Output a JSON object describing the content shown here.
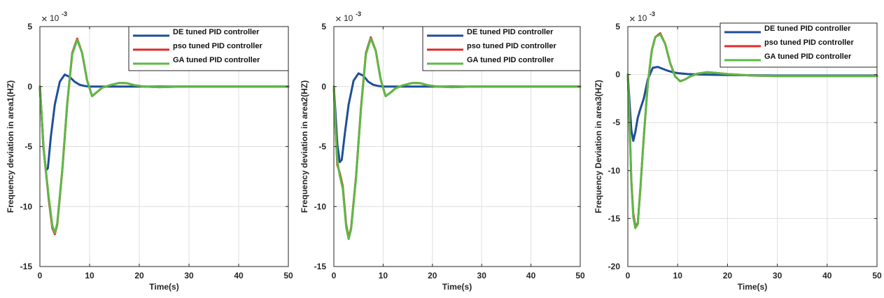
{
  "chart_data": [
    {
      "type": "line",
      "title": "",
      "xlabel": "Time(s)",
      "ylabel": "Frequency deviation in area1(HZ)",
      "exponent_label": "10",
      "exponent_power": "-3",
      "xlim": [
        0,
        50
      ],
      "ylim": [
        -15,
        5
      ],
      "xticks": [
        0,
        10,
        20,
        30,
        40,
        50
      ],
      "yticks": [
        -15,
        -10,
        -5,
        0,
        5
      ],
      "grid": true,
      "legend_position": "top-right",
      "series": [
        {
          "name": "DE tuned PID controller",
          "color": "#1f4e9c",
          "x": [
            0,
            0.3,
            0.7,
            1.2,
            1.6,
            2.2,
            3,
            4,
            5,
            6,
            7,
            8,
            9,
            10,
            12,
            15,
            20,
            30,
            50
          ],
          "y": [
            0,
            -2,
            -5,
            -7,
            -6.8,
            -4.2,
            -1.5,
            0.4,
            1.0,
            0.8,
            0.4,
            0.15,
            0.05,
            0,
            0,
            0,
            0,
            0,
            0
          ]
        },
        {
          "name": "pso tuned PID controller",
          "color": "#e02b2b",
          "x": [
            0,
            0.3,
            0.7,
            1.2,
            1.8,
            2.5,
            3,
            3.5,
            4.5,
            5.5,
            6.5,
            7.5,
            8.5,
            9.5,
            10.5,
            11.5,
            12.5,
            14,
            16,
            17.5,
            19,
            21,
            24,
            28,
            35,
            50
          ],
          "y": [
            0,
            -2,
            -5,
            -7,
            -9.5,
            -11.8,
            -12.3,
            -11.5,
            -7,
            -1.5,
            2.8,
            4.0,
            2.8,
            0.5,
            -0.8,
            -0.45,
            -0.1,
            0.1,
            0.3,
            0.28,
            0.12,
            0,
            -0.05,
            0,
            0,
            0
          ]
        },
        {
          "name": "GA tuned PID controller",
          "color": "#5cb946",
          "x": [
            0,
            0.3,
            0.7,
            1.2,
            1.8,
            2.5,
            3,
            3.5,
            4.5,
            5.5,
            6.5,
            7.5,
            8.5,
            9.5,
            10.5,
            11.5,
            12.5,
            14,
            16,
            17.5,
            19,
            21,
            24,
            28,
            35,
            50
          ],
          "y": [
            0,
            -2,
            -5,
            -7,
            -9.3,
            -11.6,
            -12.2,
            -11.4,
            -6.9,
            -1.4,
            2.7,
            3.9,
            2.8,
            0.5,
            -0.8,
            -0.45,
            -0.1,
            0.1,
            0.3,
            0.28,
            0.12,
            0,
            -0.05,
            0,
            0,
            0
          ]
        }
      ]
    },
    {
      "type": "line",
      "title": "",
      "xlabel": "Time(s)",
      "ylabel": "Frequency deviation in area2(HZ)",
      "exponent_label": "10",
      "exponent_power": "-3",
      "xlim": [
        0,
        50
      ],
      "ylim": [
        -15,
        5
      ],
      "xticks": [
        0,
        10,
        20,
        30,
        40,
        50
      ],
      "yticks": [
        -15,
        -10,
        -5,
        0,
        5
      ],
      "grid": true,
      "legend_position": "top-right",
      "series": [
        {
          "name": "DE tuned PID controller",
          "color": "#1f4e9c",
          "x": [
            0,
            0.3,
            0.7,
            1.2,
            1.6,
            2.2,
            3,
            4,
            5,
            6,
            7,
            8,
            9,
            10,
            12,
            15,
            20,
            30,
            50
          ],
          "y": [
            0,
            -2,
            -4.8,
            -6.3,
            -6.1,
            -4.0,
            -1.5,
            0.5,
            1.1,
            0.9,
            0.4,
            0.15,
            0.05,
            0,
            0,
            0,
            0,
            0,
            0
          ]
        },
        {
          "name": "pso tuned PID controller",
          "color": "#e02b2b",
          "x": [
            0,
            0.3,
            0.7,
            1.2,
            1.8,
            2.5,
            3,
            3.5,
            4.5,
            5.5,
            6.5,
            7.5,
            8.5,
            9.5,
            10.5,
            11.5,
            12.5,
            14,
            16,
            17.5,
            19,
            21,
            24,
            28,
            35,
            50
          ],
          "y": [
            0,
            -3,
            -6.5,
            -7.2,
            -8.3,
            -11.5,
            -12.6,
            -11.8,
            -7.5,
            -1.8,
            2.8,
            4.1,
            3.0,
            0.6,
            -0.8,
            -0.5,
            -0.15,
            0.1,
            0.3,
            0.28,
            0.12,
            0,
            -0.05,
            0,
            0,
            0
          ]
        },
        {
          "name": "GA tuned PID controller",
          "color": "#5cb946",
          "x": [
            0,
            0.3,
            0.7,
            1.2,
            1.8,
            2.5,
            3,
            3.5,
            4.5,
            5.5,
            6.5,
            7.5,
            8.5,
            9.5,
            10.5,
            11.5,
            12.5,
            14,
            16,
            17.5,
            19,
            21,
            24,
            28,
            35,
            50
          ],
          "y": [
            0,
            -3.2,
            -6.2,
            -7.4,
            -8.5,
            -11.7,
            -12.7,
            -11.9,
            -7.6,
            -1.9,
            2.7,
            4.0,
            3.0,
            0.6,
            -0.8,
            -0.5,
            -0.15,
            0.1,
            0.3,
            0.28,
            0.12,
            0,
            -0.05,
            0,
            0,
            0
          ]
        }
      ]
    },
    {
      "type": "line",
      "title": "",
      "xlabel": "Time(s)",
      "ylabel": "Frequency Deviation in area3(HZ)",
      "exponent_label": "10",
      "exponent_power": "-3",
      "xlim": [
        0,
        50
      ],
      "ylim": [
        -20,
        5
      ],
      "xticks": [
        0,
        10,
        20,
        30,
        40,
        50
      ],
      "yticks": [
        -20,
        -15,
        -10,
        -5,
        0,
        5
      ],
      "grid": true,
      "legend_position": "top-right",
      "series": [
        {
          "name": "DE tuned PID controller",
          "color": "#1f4e9c",
          "x": [
            0,
            0.3,
            0.7,
            1.1,
            1.5,
            2,
            2.5,
            3.2,
            4,
            5,
            6,
            7,
            8,
            9,
            10,
            12,
            15,
            20,
            30,
            50
          ],
          "y": [
            0,
            -2.5,
            -5.8,
            -6.9,
            -6.0,
            -4.5,
            -3.6,
            -2.5,
            -0.5,
            0.7,
            0.8,
            0.6,
            0.4,
            0.25,
            0.15,
            0.05,
            0,
            -0.05,
            -0.1,
            -0.1
          ]
        },
        {
          "name": "pso tuned PID controller",
          "color": "#e02b2b",
          "x": [
            0,
            0.3,
            0.7,
            1.1,
            1.5,
            2,
            2.5,
            3.2,
            4,
            4.8,
            5.5,
            6.5,
            7.5,
            8.5,
            9.5,
            10.5,
            11.5,
            12.5,
            14,
            16,
            18,
            20,
            25,
            30,
            40,
            50
          ],
          "y": [
            0,
            -4,
            -11,
            -14.5,
            -15.8,
            -15.5,
            -12,
            -6.5,
            -1.0,
            2.5,
            3.9,
            4.3,
            3.2,
            1.2,
            -0.2,
            -0.7,
            -0.5,
            -0.2,
            0.1,
            0.25,
            0.15,
            0.05,
            -0.1,
            -0.15,
            -0.15,
            -0.15
          ]
        },
        {
          "name": "GA tuned PID controller",
          "color": "#5cb946",
          "x": [
            0,
            0.3,
            0.7,
            1.1,
            1.5,
            2,
            2.5,
            3.2,
            4,
            4.8,
            5.5,
            6.5,
            7.5,
            8.5,
            9.5,
            10.5,
            11.5,
            12.5,
            14,
            16,
            18,
            20,
            25,
            30,
            40,
            50
          ],
          "y": [
            0,
            -4.2,
            -11.2,
            -14.8,
            -16,
            -15.6,
            -12,
            -6.5,
            -1.0,
            2.5,
            3.9,
            4.2,
            3.2,
            1.2,
            -0.2,
            -0.7,
            -0.5,
            -0.2,
            0.1,
            0.25,
            0.15,
            0.05,
            -0.1,
            -0.15,
            -0.15,
            -0.15
          ]
        }
      ]
    }
  ]
}
